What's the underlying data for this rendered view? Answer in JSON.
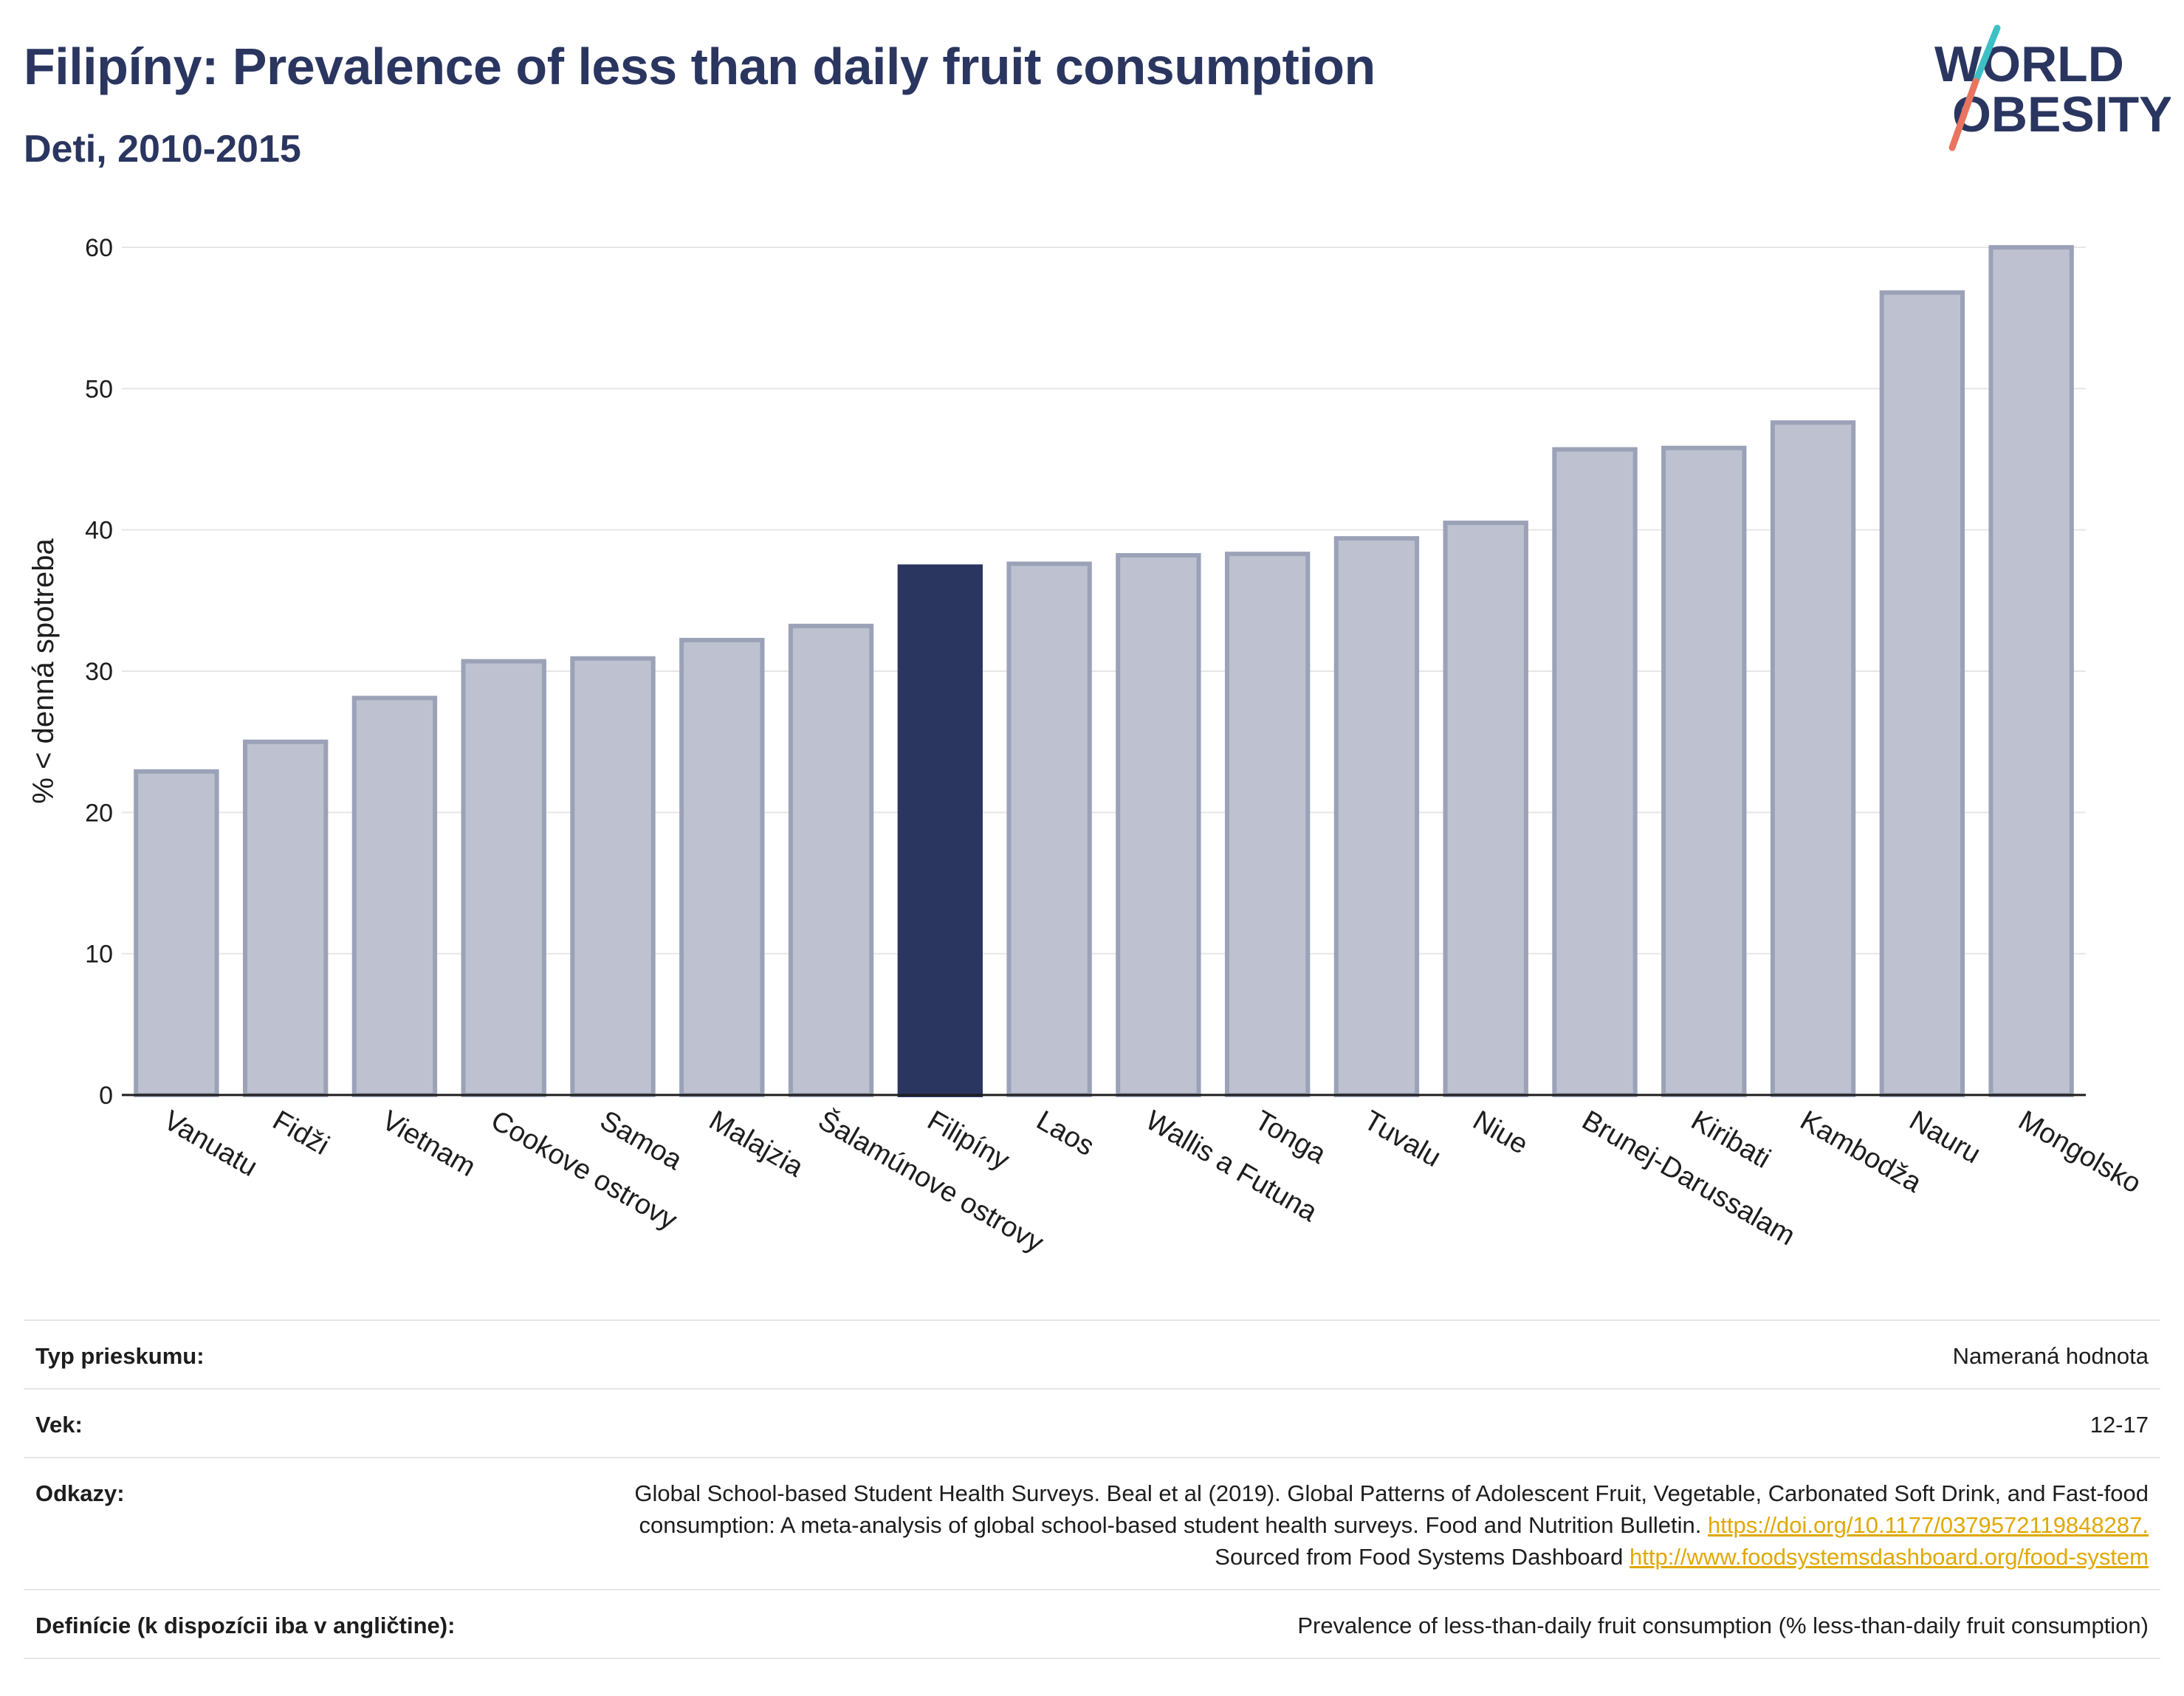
{
  "header": {
    "title": "Filipíny: Prevalence of less than daily fruit consumption",
    "subtitle": "Deti, 2010-2015"
  },
  "logo": {
    "line1": "WORLD",
    "line2": "OBESITY",
    "accent_teal": "#3cc0c5",
    "accent_coral": "#e8745f",
    "color": "#2a3660"
  },
  "chart_data": {
    "type": "bar",
    "categories": [
      "Vanuatu",
      "Fidži",
      "Vietnam",
      "Cookove ostrovy",
      "Samoa",
      "Malajzia",
      "Šalamúnove ostrovy",
      "Filipíny",
      "Laos",
      "Wallis a Futuna",
      "Tonga",
      "Tuvalu",
      "Niue",
      "Brunej-Darussalam",
      "Kiribati",
      "Kambodža",
      "Nauru",
      "Mongolsko"
    ],
    "values": [
      22.9,
      25.0,
      28.1,
      30.7,
      30.9,
      32.2,
      33.2,
      37.4,
      37.6,
      38.2,
      38.3,
      39.4,
      40.5,
      45.7,
      45.8,
      47.6,
      56.8,
      60.0
    ],
    "highlight": "Filipíny",
    "ylabel": "% < denná spotreba",
    "xlabel": "",
    "ylim": [
      0,
      60
    ],
    "yticks": [
      0,
      10,
      20,
      30,
      40,
      50,
      60
    ],
    "grid": true,
    "colors": {
      "highlight": "#2a3660",
      "bar_fill": "#bec2d0",
      "bar_stroke": "#9ba2b8"
    }
  },
  "info": {
    "survey_type": {
      "label": "Typ prieskumu:",
      "value": "Nameraná hodnota"
    },
    "age": {
      "label": "Vek:",
      "value": "12-17"
    },
    "refs": {
      "label": "Odkazy:",
      "text1": "Global School-based Student Health Surveys. Beal et al (2019). Global Patterns of Adolescent Fruit, Vegetable, Carbonated Soft Drink, and Fast-food consumption: A meta-analysis of global school-based student health surveys. Food and Nutrition Bulletin.",
      "link1": "https://doi.org/10.1177/0379572119848287.",
      "text2": "Sourced from Food Systems Dashboard",
      "link2": "http://www.foodsystemsdashboard.org/food-system"
    },
    "definition": {
      "label": "Definície (k dispozícii iba v angličtine):",
      "value": "Prevalence of less-than-daily fruit consumption (% less-than-daily fruit consumption)"
    }
  }
}
